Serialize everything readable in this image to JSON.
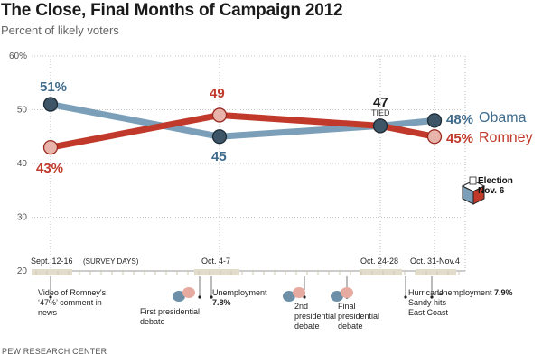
{
  "title": "The Close, Final Months of Campaign 2012",
  "subtitle": "Percent of likely voters",
  "source": "PEW RESEARCH CENTER",
  "chart_data": {
    "type": "line",
    "ylim": [
      20,
      60
    ],
    "yticks": [
      "60%",
      "50",
      "40",
      "30",
      "20"
    ],
    "categories": [
      "Sept. 12-16",
      "Oct. 4-7",
      "Oct. 24-28",
      "Oct. 31-Nov.4"
    ],
    "survey_days_note": "(SURVEY DAYS)",
    "series": [
      {
        "name": "Obama",
        "values": [
          51,
          45,
          47,
          48
        ],
        "color": "#7b9fb8",
        "labels": [
          "51%",
          "45",
          "47",
          "48%"
        ]
      },
      {
        "name": "Romney",
        "values": [
          43,
          49,
          47,
          45
        ],
        "color": "#c0392b",
        "labels": [
          "43%",
          "49",
          "47",
          "45%"
        ]
      }
    ],
    "tied_label": "TIED",
    "election": {
      "line1": "Election",
      "line2": "Nov. 6"
    },
    "events": [
      {
        "lines": [
          "Video of Romney's",
          "‘47%’ comment in",
          "news"
        ],
        "bubble": false
      },
      {
        "lines": [
          "First presidential",
          "debate"
        ],
        "bubble": true
      },
      {
        "lines": [
          "Unemployment",
          "7.8%"
        ],
        "bubble": false,
        "bold_second": true
      },
      {
        "lines": [
          "2nd",
          "presidential",
          "debate"
        ],
        "bubble": true
      },
      {
        "lines": [
          "Final",
          "presidential",
          "debate"
        ],
        "bubble": true
      },
      {
        "lines": [
          "Hurricane",
          "Sandy hits",
          "East Coast"
        ],
        "bubble": false
      },
      {
        "lines": [
          "Unemployment",
          "7.9%"
        ],
        "bubble": false,
        "inline_bold": true
      }
    ]
  }
}
